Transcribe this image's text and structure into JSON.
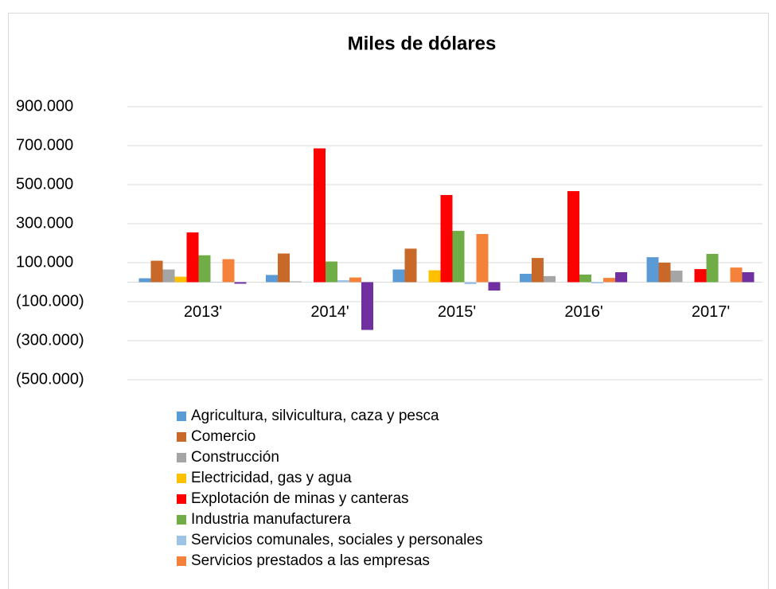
{
  "chart_data": {
    "type": "bar",
    "title": "Miles de dólares",
    "categories": [
      "2013'",
      "2014'",
      "2015'",
      "2016'",
      "2017'"
    ],
    "series": [
      {
        "name": "Agricultura, silvicultura, caza y pesca",
        "color": "#5b9bd5",
        "values": [
          20000,
          37000,
          65000,
          43000,
          128000
        ]
      },
      {
        "name": "Comercio",
        "color": "#c8692a",
        "values": [
          110000,
          147000,
          172000,
          124000,
          100000
        ]
      },
      {
        "name": "Construcción",
        "color": "#a5a5a5",
        "values": [
          65000,
          4000,
          0,
          31000,
          59000
        ]
      },
      {
        "name": "Electricidad, gas y agua",
        "color": "#ffc000",
        "values": [
          28000,
          0,
          61000,
          0,
          0
        ]
      },
      {
        "name": "Explotación de minas y canteras",
        "color": "#ff0000",
        "values": [
          255000,
          686000,
          447000,
          467000,
          67000
        ]
      },
      {
        "name": "Industria manufacturera",
        "color": "#70ad47",
        "values": [
          138000,
          106000,
          263000,
          39000,
          145000
        ]
      },
      {
        "name": "Servicios comunales, sociales y personales",
        "color": "#9dc3e6",
        "values": [
          2000,
          10000,
          -10000,
          -6000,
          0
        ]
      },
      {
        "name": "Servicios prestados a las empresas",
        "color": "#f4823a",
        "values": [
          118000,
          24000,
          247000,
          22000,
          75000
        ]
      },
      {
        "color": "#7030a0",
        "values": [
          -8000,
          -245000,
          -43000,
          51000,
          51000
        ]
      }
    ],
    "ylim": [
      -500000,
      900000
    ],
    "yticks": [
      {
        "value": 900000,
        "label": "900.000"
      },
      {
        "value": 700000,
        "label": "700.000"
      },
      {
        "value": 500000,
        "label": "500.000"
      },
      {
        "value": 300000,
        "label": "300.000"
      },
      {
        "value": 100000,
        "label": "100.000"
      },
      {
        "value": -100000,
        "label": "(100.000)"
      },
      {
        "value": -300000,
        "label": "(300.000)"
      },
      {
        "value": -500000,
        "label": "(500.000)"
      }
    ],
    "grid": true,
    "legend": "bottom"
  }
}
